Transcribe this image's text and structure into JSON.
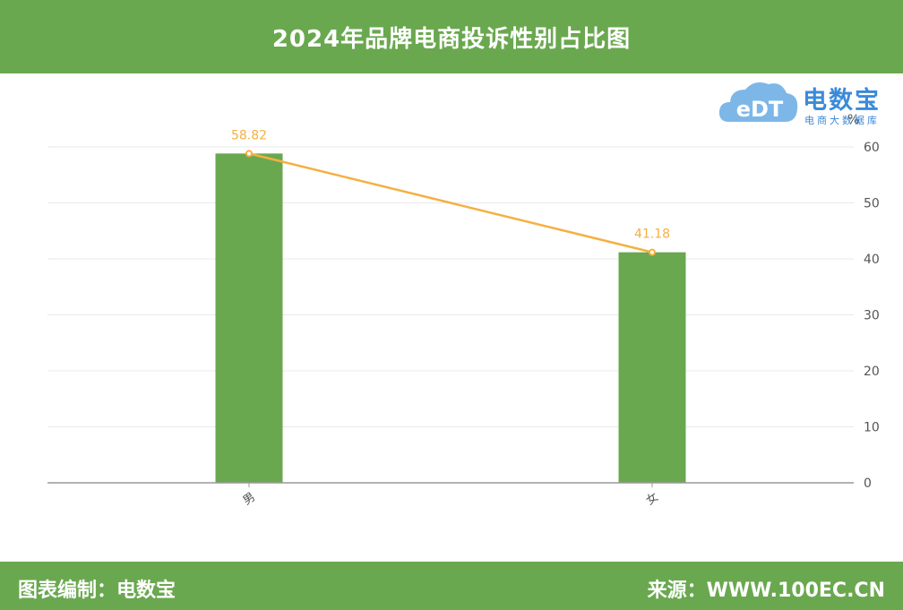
{
  "header": {
    "title": "2024年品牌电商投诉性别占比图"
  },
  "footer": {
    "left": "图表编制：电数宝",
    "right": "来源：WWW.100EC.CN"
  },
  "logo": {
    "name": "电数宝",
    "subtitle": "电商大数据库",
    "mark": "eDT"
  },
  "colors": {
    "bar": "#6aa84f",
    "line": "#f5b041",
    "header": "#6aa84f",
    "logo": "#3b8ad9"
  },
  "chart_data": {
    "type": "bar",
    "categories": [
      "男",
      "女"
    ],
    "values": [
      58.82,
      41.18
    ],
    "line_values": [
      58.82,
      41.18
    ],
    "data_labels": [
      "58.82",
      "41.18"
    ],
    "ylabel": "%",
    "ylim": [
      0,
      60
    ],
    "yticks": [
      0,
      10,
      20,
      30,
      40,
      50,
      60
    ],
    "grid": true,
    "axis_side": "right"
  }
}
